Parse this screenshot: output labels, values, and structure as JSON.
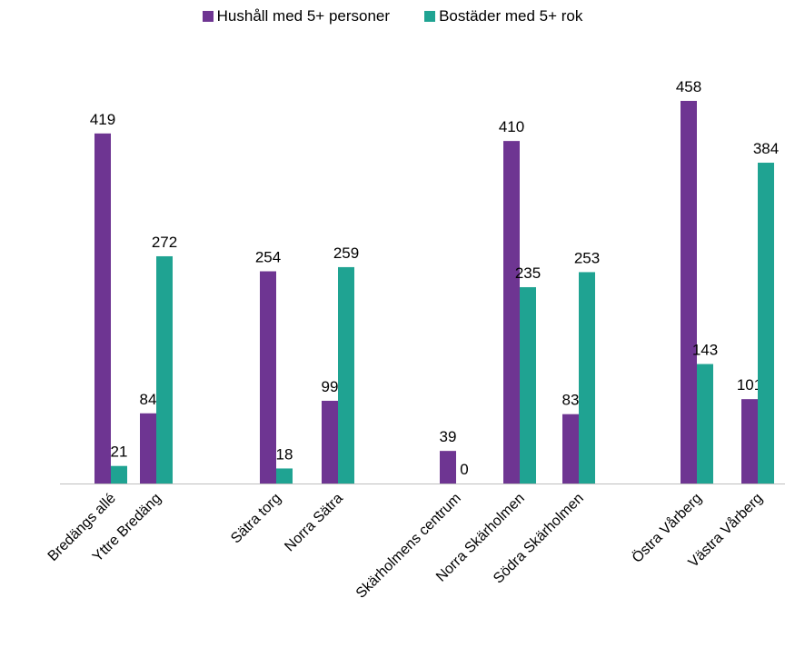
{
  "chart_data": {
    "type": "bar",
    "categories": [
      "Bredängs allé",
      "Yttre Bredäng",
      "Sätra torg",
      "Norra Sätra",
      "Skärholmens centrum",
      "Norra Skärholmen",
      "Södra Skärholmen",
      "Östra Vårberg",
      "Västra Vårberg"
    ],
    "series": [
      {
        "name": "Hushåll med 5+ personer",
        "color": "#6E3592",
        "values": [
          419,
          84,
          254,
          99,
          39,
          410,
          83,
          458,
          101
        ]
      },
      {
        "name": "Bostäder med 5+ rok",
        "color": "#1FA392",
        "values": [
          21,
          272,
          18,
          259,
          0,
          235,
          253,
          143,
          384
        ]
      }
    ],
    "ylim": [
      0,
      500
    ],
    "grid": false,
    "legend_position": "top"
  }
}
